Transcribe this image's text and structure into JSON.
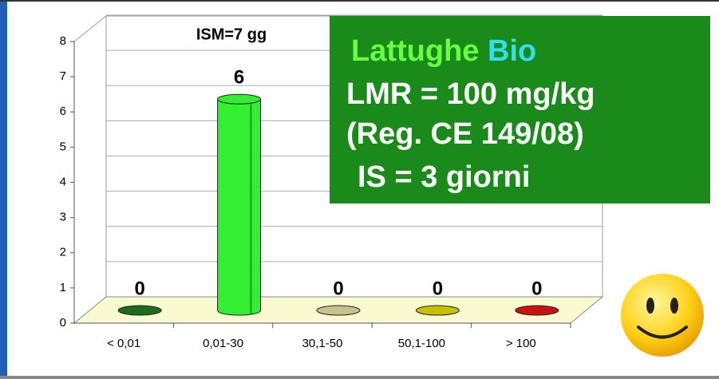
{
  "chart_data": {
    "type": "bar",
    "title": "ISM=7 gg",
    "categories": [
      "< 0,01",
      "0,01-30",
      "30,1-50",
      "50,1-100",
      "> 100"
    ],
    "values": [
      0,
      6,
      0,
      0,
      0
    ],
    "colors": [
      "#1d6b1d",
      "#33ee33",
      "#c9c28c",
      "#c8c000",
      "#cc1111"
    ],
    "ylim": [
      0,
      8
    ],
    "yticks": [
      0,
      1,
      2,
      3,
      4,
      5,
      6,
      7,
      8
    ],
    "grid": true,
    "annotations": [
      "Lattughe",
      "Bio",
      "LMR = 100 mg/kg",
      "(Reg. CE 149/08)",
      "IS = 3 giorni"
    ]
  }
}
